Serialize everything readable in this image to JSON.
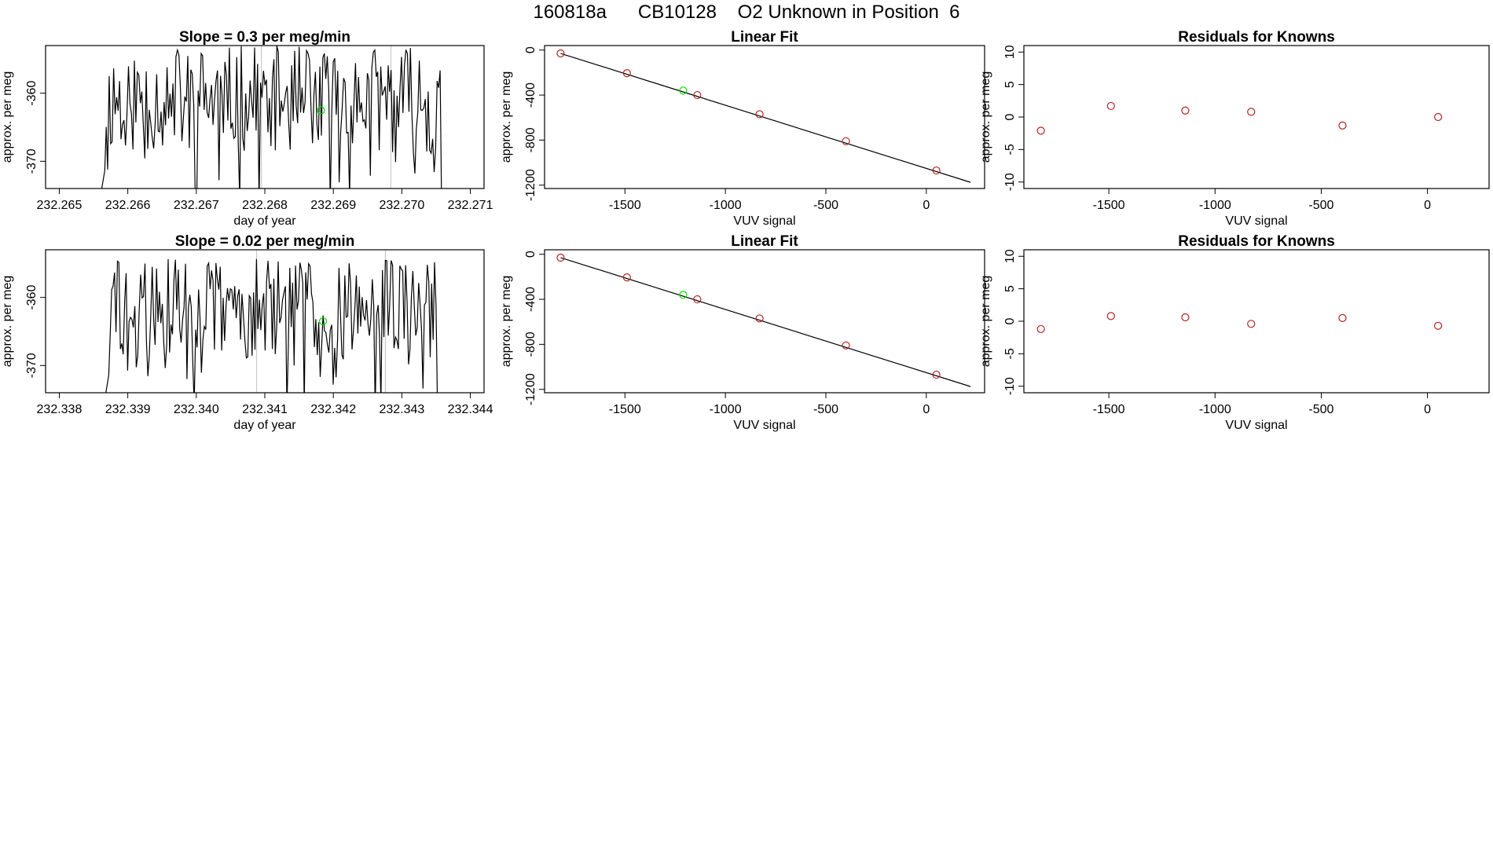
{
  "page_title": "160818a      CB10128    O2 Unknown in Position  6",
  "colors": {
    "line": "#000000",
    "known": "#b22222",
    "unknown": "#00dd00",
    "vline": "#c8c8c8"
  },
  "chart_data": [
    {
      "id": "row1-time",
      "type": "line",
      "title": "Slope =  0.3  per meg/min",
      "xlabel": "day of year",
      "ylabel": "approx. per meg",
      "xlim": [
        232.2648,
        232.2712
      ],
      "ylim": [
        -374,
        -353
      ],
      "xticks": [
        232.265,
        232.266,
        232.267,
        232.268,
        232.269,
        232.27,
        232.271
      ],
      "xtick_labels": [
        "232.265",
        "232.266",
        "232.267",
        "232.268",
        "232.269",
        "232.270",
        "232.271"
      ],
      "yticks": [
        -360,
        -370
      ],
      "ytick_labels": [
        "-360",
        "-370"
      ],
      "x_range": [
        232.26562,
        232.27058
      ],
      "y_range": [
        -374,
        -353
      ],
      "series_seed": 11,
      "vlines": [
        232.26795,
        232.26984
      ],
      "unknown_point": {
        "x": 232.26882,
        "y": -362.5
      }
    },
    {
      "id": "row1-fit",
      "type": "scatter",
      "title": "Linear Fit",
      "xlabel": "VUV signal",
      "ylabel": "approx. per meg",
      "xlim": [
        -1900,
        290
      ],
      "ylim": [
        -1230,
        40
      ],
      "xticks": [
        -1500,
        -1000,
        -500,
        0
      ],
      "xtick_labels": [
        "-1500",
        "-1000",
        "-500",
        "0"
      ],
      "yticks": [
        0,
        -400,
        -800,
        -1200
      ],
      "ytick_labels": [
        "0",
        "-400",
        "-800",
        "-1200"
      ],
      "fit_line": {
        "x": [
          -1820,
          220
        ],
        "y": [
          -30,
          -1175
        ]
      },
      "knowns": {
        "x": [
          -1820,
          -1490,
          -1140,
          -830,
          -400,
          50
        ],
        "y": [
          -30,
          -205,
          -400,
          -570,
          -810,
          -1070
        ]
      },
      "unknown_point": {
        "x": -1210,
        "y": -360
      }
    },
    {
      "id": "row1-resid",
      "type": "scatter",
      "title": "Residuals for Knowns",
      "xlabel": "VUV signal",
      "ylabel": "approx. per meg",
      "xlim": [
        -1900,
        290
      ],
      "ylim": [
        -11,
        11
      ],
      "xticks": [
        -1500,
        -1000,
        -500,
        0
      ],
      "xtick_labels": [
        "-1500",
        "-1000",
        "-500",
        "0"
      ],
      "yticks": [
        10,
        5,
        0,
        -5,
        -10
      ],
      "ytick_labels": [
        "10",
        "5",
        "0",
        "-5",
        "-10"
      ],
      "knowns": {
        "x": [
          -1820,
          -1490,
          -1140,
          -830,
          -400,
          50
        ],
        "y": [
          -2.1,
          1.7,
          1.0,
          0.8,
          -1.3,
          0.0
        ]
      }
    },
    {
      "id": "row2-time",
      "type": "line",
      "title": "Slope =  0.02  per meg/min",
      "xlabel": "day of year",
      "ylabel": "approx. per meg",
      "xlim": [
        232.3378,
        232.3442
      ],
      "ylim": [
        -374,
        -353
      ],
      "xticks": [
        232.338,
        232.339,
        232.34,
        232.341,
        232.342,
        232.343,
        232.344
      ],
      "xtick_labels": [
        "232.338",
        "232.339",
        "232.340",
        "232.341",
        "232.342",
        "232.343",
        "232.344"
      ],
      "yticks": [
        -360,
        -370
      ],
      "ytick_labels": [
        "-360",
        "-370"
      ],
      "x_range": [
        232.33868,
        232.34352
      ],
      "y_range": [
        -374,
        -354
      ],
      "series_seed": 29,
      "vlines": [
        232.34088,
        232.34276
      ],
      "unknown_point": {
        "x": 232.34185,
        "y": -363.5
      }
    },
    {
      "id": "row2-fit",
      "type": "scatter",
      "title": "Linear Fit",
      "xlabel": "VUV signal",
      "ylabel": "approx. per meg",
      "xlim": [
        -1900,
        290
      ],
      "ylim": [
        -1230,
        40
      ],
      "xticks": [
        -1500,
        -1000,
        -500,
        0
      ],
      "xtick_labels": [
        "-1500",
        "-1000",
        "-500",
        "0"
      ],
      "yticks": [
        0,
        -400,
        -800,
        -1200
      ],
      "ytick_labels": [
        "0",
        "-400",
        "-800",
        "-1200"
      ],
      "fit_line": {
        "x": [
          -1820,
          220
        ],
        "y": [
          -30,
          -1175
        ]
      },
      "knowns": {
        "x": [
          -1820,
          -1490,
          -1140,
          -830,
          -400,
          50
        ],
        "y": [
          -30,
          -205,
          -400,
          -570,
          -810,
          -1070
        ]
      },
      "unknown_point": {
        "x": -1210,
        "y": -360
      }
    },
    {
      "id": "row2-resid",
      "type": "scatter",
      "title": "Residuals for Knowns",
      "xlabel": "VUV signal",
      "ylabel": "approx. per meg",
      "xlim": [
        -1900,
        290
      ],
      "ylim": [
        -11,
        11
      ],
      "xticks": [
        -1500,
        -1000,
        -500,
        0
      ],
      "xtick_labels": [
        "-1500",
        "-1000",
        "-500",
        "0"
      ],
      "yticks": [
        10,
        5,
        0,
        -5,
        -10
      ],
      "ytick_labels": [
        "10",
        "5",
        "0",
        "-5",
        "-10"
      ],
      "knowns": {
        "x": [
          -1820,
          -1490,
          -1140,
          -830,
          -400,
          50
        ],
        "y": [
          -1.2,
          0.8,
          0.6,
          -0.4,
          0.5,
          -0.7
        ]
      }
    }
  ]
}
